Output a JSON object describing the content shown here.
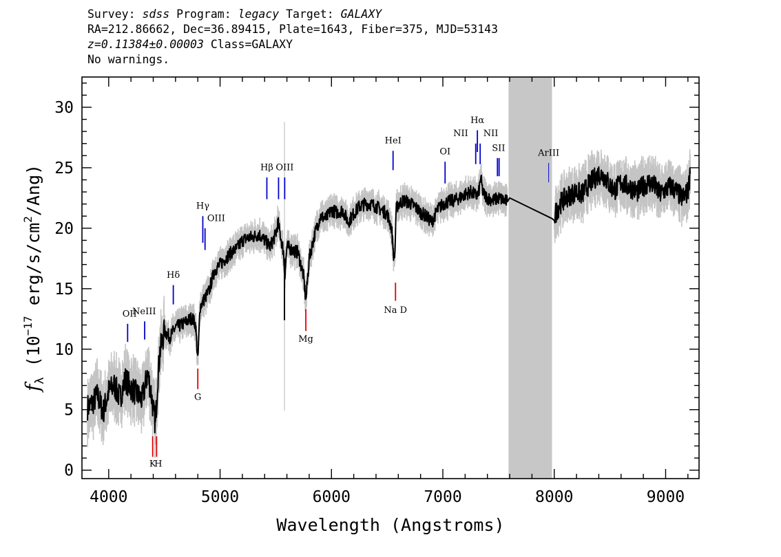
{
  "header": {
    "line1": {
      "survey_label": "Survey: ",
      "survey": "sdss",
      "program_label": " Program: ",
      "program": "legacy",
      "target_label": " Target: ",
      "target": "GALAXY"
    },
    "line2": "RA=212.86662, Dec=36.89415, Plate=1643, Fiber=375, MJD=53143",
    "line3": {
      "z": "z=0.11384±0.00003",
      "class": " Class=GALAXY"
    },
    "line4": "No warnings."
  },
  "chart_data": {
    "type": "line",
    "xlabel": "Wavelength (Angstroms)",
    "ylabel_parts": {
      "f": "f",
      "sub": "λ",
      "pre": " (10",
      "exp": "−17",
      "post": " erg/s/cm",
      "exp2": "2",
      "end": "/Ang)"
    },
    "xlim": [
      3760,
      9300
    ],
    "ylim": [
      -0.7,
      32.5
    ],
    "xticks": [
      4000,
      5000,
      6000,
      7000,
      8000,
      9000
    ],
    "yticks": [
      0,
      5,
      10,
      15,
      20,
      25,
      30
    ],
    "masked_region": [
      7590,
      7980
    ],
    "series": [
      {
        "style": "black-smoothed",
        "x": [
          3810,
          3850,
          3900,
          3950,
          4000,
          4050,
          4100,
          4150,
          4200,
          4250,
          4300,
          4350,
          4380,
          4400,
          4420,
          4440,
          4460,
          4500,
          4550,
          4600,
          4650,
          4700,
          4750,
          4780,
          4800,
          4820,
          4850,
          4900,
          4950,
          5000,
          5050,
          5100,
          5150,
          5200,
          5250,
          5300,
          5350,
          5400,
          5450,
          5500,
          5520,
          5550,
          5570,
          5580,
          5600,
          5650,
          5700,
          5750,
          5770,
          5800,
          5850,
          5900,
          5950,
          6000,
          6050,
          6100,
          6150,
          6200,
          6250,
          6300,
          6350,
          6400,
          6450,
          6500,
          6540,
          6560,
          6570,
          6580,
          6600,
          6650,
          6700,
          6750,
          6800,
          6850,
          6900,
          6950,
          7000,
          7050,
          7100,
          7150,
          7200,
          7250,
          7300,
          7320,
          7340,
          7360,
          7400,
          7450,
          7500,
          7550,
          7580,
          7600,
          7980,
          8000,
          8050,
          8100,
          8150,
          8200,
          8250,
          8300,
          8350,
          8400,
          8450,
          8500,
          8550,
          8600,
          8650,
          8700,
          8750,
          8800,
          8850,
          8900,
          8950,
          9000,
          9050,
          9100,
          9150,
          9200,
          9220
        ],
        "y": [
          5.2,
          5.5,
          6.2,
          4.8,
          6.5,
          7.0,
          6.0,
          7.5,
          6.8,
          6.3,
          5.8,
          8.0,
          6.5,
          5.0,
          3.8,
          7.5,
          9.8,
          11.5,
          11.0,
          11.8,
          12.0,
          12.3,
          12.6,
          12.0,
          9.0,
          13.5,
          14.0,
          14.8,
          16.5,
          17.0,
          17.5,
          18.0,
          18.3,
          19.0,
          19.2,
          19.3,
          19.5,
          19.0,
          18.5,
          19.5,
          20.5,
          19.0,
          18.0,
          16.0,
          18.5,
          18.2,
          18.0,
          16.0,
          14.0,
          17.5,
          19.5,
          21.0,
          20.8,
          21.5,
          21.3,
          21.5,
          20.5,
          21.2,
          21.8,
          22.0,
          22.0,
          21.8,
          21.5,
          21.2,
          20.0,
          17.5,
          18.0,
          21.5,
          22.0,
          22.3,
          22.1,
          21.8,
          21.3,
          21.0,
          20.5,
          21.5,
          22.0,
          22.2,
          22.3,
          22.5,
          22.8,
          23.0,
          22.7,
          22.8,
          24.2,
          22.9,
          22.5,
          22.3,
          22.5,
          22.3,
          22.2,
          22.5,
          20.8,
          21.0,
          22.0,
          22.5,
          22.8,
          23.0,
          22.8,
          23.5,
          24.0,
          24.5,
          24.3,
          23.5,
          23.2,
          23.8,
          23.5,
          23.3,
          23.0,
          23.5,
          23.8,
          23.5,
          22.8,
          23.2,
          23.5,
          23.0,
          22.5,
          23.0,
          24.5
        ]
      }
    ],
    "emission_lines": [
      {
        "label": "OII",
        "x": 4170,
        "y0": 10.6,
        "y1": 12.1,
        "lx": 4188,
        "ly": 12.7
      },
      {
        "label": "NeIII",
        "x": 4323,
        "y0": 10.8,
        "y1": 12.3,
        "lx": 4318,
        "ly": 12.9
      },
      {
        "label": "Hδ",
        "x": 4580,
        "y0": 13.7,
        "y1": 15.3,
        "lx": 4580,
        "ly": 15.9
      },
      {
        "label": "Hγ",
        "x": 4845,
        "y0": 18.8,
        "y1": 21.0,
        "lx": 4845,
        "ly": 21.6
      },
      {
        "label": "OIII",
        "x": 4865,
        "y0": 18.2,
        "y1": 20.0,
        "lx": 4965,
        "ly": 20.6
      },
      {
        "label": "Hβ",
        "x": 5420,
        "y0": 22.4,
        "y1": 24.2,
        "lx": 5420,
        "ly": 24.8
      },
      {
        "label": "OIII",
        "x": 5525,
        "y0": 22.4,
        "y1": 24.2,
        "lx": 5580,
        "ly": 24.8
      },
      {
        "label": "OIII",
        "x": 5580,
        "y0": 22.4,
        "y1": 24.2,
        "lx": "",
        "ly": ""
      },
      {
        "label": "HeI",
        "x": 6553,
        "y0": 24.8,
        "y1": 26.4,
        "lx": 6553,
        "ly": 27.0
      },
      {
        "label": "OI",
        "x": 7020,
        "y0": 23.7,
        "y1": 25.5,
        "lx": 7020,
        "ly": 26.1
      },
      {
        "label": "NII",
        "x": 7295,
        "y0": 25.3,
        "y1": 27.0,
        "lx": 7160,
        "ly": 27.6
      },
      {
        "label": "Hα",
        "x": 7310,
        "y0": 26.3,
        "y1": 28.1,
        "lx": 7310,
        "ly": 28.7
      },
      {
        "label": "NII",
        "x": 7335,
        "y0": 25.3,
        "y1": 27.0,
        "lx": 7430,
        "ly": 27.6
      },
      {
        "label": "SII",
        "x": 7490,
        "y0": 24.3,
        "y1": 25.8,
        "lx": 7500,
        "ly": 26.4
      },
      {
        "label": "SII",
        "x": 7505,
        "y0": 24.3,
        "y1": 25.8,
        "lx": "",
        "ly": ""
      },
      {
        "label": "ArIII",
        "x": 7950,
        "y0": 23.8,
        "y1": 25.4,
        "lx": 7950,
        "ly": 26.0
      }
    ],
    "absorption_lines": [
      {
        "label": "K",
        "x": 4395,
        "y0": 2.8,
        "y1": 1.1,
        "lx": 4395,
        "ly": 0.3
      },
      {
        "label": "H",
        "x": 4430,
        "y0": 2.8,
        "y1": 1.1,
        "lx": 4445,
        "ly": 0.3
      },
      {
        "label": "G",
        "x": 4800,
        "y0": 8.4,
        "y1": 6.7,
        "lx": 4800,
        "ly": 5.8
      },
      {
        "label": "Mg",
        "x": 5770,
        "y0": 13.3,
        "y1": 11.5,
        "lx": 5770,
        "ly": 10.6
      },
      {
        "label": "Na D",
        "x": 6575,
        "y0": 15.5,
        "y1": 14.0,
        "lx": 6575,
        "ly": 13.0
      }
    ],
    "colors": {
      "spectrum": "#000000",
      "error": "#c4c4c4",
      "emission": "#0000cc",
      "absorption": "#dd0000",
      "mask": "#c7c7c7"
    }
  }
}
